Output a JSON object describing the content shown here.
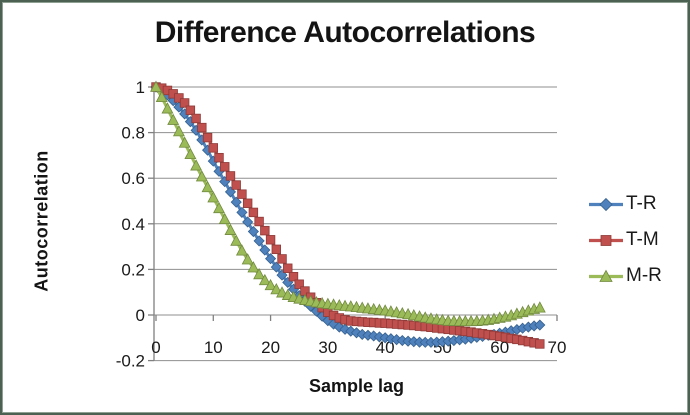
{
  "chart_data": {
    "type": "line",
    "title": "Difference Autocorrelations",
    "xlabel": "Sample lag",
    "ylabel": "Autocorrelation",
    "xlim": [
      0,
      70
    ],
    "ylim": [
      -0.2,
      1.0
    ],
    "x_ticks": [
      0,
      10,
      20,
      30,
      40,
      50,
      60,
      70
    ],
    "y_ticks": [
      1,
      0.8,
      0.6,
      0.4,
      0.2,
      0,
      -0.2
    ],
    "y_tick_labels": [
      "1",
      "0.8",
      "0.6",
      "0.4",
      "0.2",
      "0",
      "-0.2"
    ],
    "grid": "horizontal",
    "grid_color": "#8f8f8f",
    "axis_color": "#808080",
    "text_color": "#1a1a1a",
    "legend_position": "right",
    "x": [
      0,
      1,
      2,
      3,
      4,
      5,
      6,
      7,
      8,
      9,
      10,
      11,
      12,
      13,
      14,
      15,
      16,
      17,
      18,
      19,
      20,
      21,
      22,
      23,
      24,
      25,
      26,
      27,
      28,
      29,
      30,
      31,
      32,
      33,
      34,
      35,
      36,
      37,
      38,
      39,
      40,
      41,
      42,
      43,
      44,
      45,
      46,
      47,
      48,
      49,
      50,
      51,
      52,
      53,
      54,
      55,
      56,
      57,
      58,
      59,
      60,
      61,
      62,
      63,
      64,
      65,
      66,
      67
    ],
    "series": [
      {
        "name": "T-R",
        "color": "#4F81BD",
        "edge_color": "#35618e",
        "marker": "diamond",
        "values": [
          1.0,
          0.985,
          0.965,
          0.94,
          0.912,
          0.882,
          0.848,
          0.81,
          0.768,
          0.723,
          0.675,
          0.63,
          0.585,
          0.54,
          0.495,
          0.45,
          0.408,
          0.366,
          0.325,
          0.285,
          0.247,
          0.21,
          0.175,
          0.143,
          0.113,
          0.085,
          0.06,
          0.038,
          0.017,
          -0.005,
          -0.025,
          -0.04,
          -0.053,
          -0.063,
          -0.071,
          -0.078,
          -0.085,
          -0.089,
          -0.092,
          -0.096,
          -0.1,
          -0.104,
          -0.108,
          -0.112,
          -0.115,
          -0.117,
          -0.119,
          -0.12,
          -0.12,
          -0.119,
          -0.117,
          -0.115,
          -0.112,
          -0.109,
          -0.106,
          -0.102,
          -0.098,
          -0.094,
          -0.089,
          -0.085,
          -0.08,
          -0.075,
          -0.069,
          -0.064,
          -0.058,
          -0.053,
          -0.048,
          -0.044
        ]
      },
      {
        "name": "T-M",
        "color": "#C0504D",
        "edge_color": "#8e3a38",
        "marker": "square",
        "values": [
          1.0,
          0.995,
          0.985,
          0.97,
          0.952,
          0.93,
          0.898,
          0.862,
          0.822,
          0.778,
          0.733,
          0.69,
          0.65,
          0.61,
          0.57,
          0.53,
          0.49,
          0.45,
          0.41,
          0.37,
          0.33,
          0.288,
          0.246,
          0.205,
          0.168,
          0.135,
          0.105,
          0.078,
          0.054,
          0.032,
          0.012,
          -0.002,
          -0.013,
          -0.021,
          -0.026,
          -0.028,
          -0.03,
          -0.032,
          -0.033,
          -0.035,
          -0.036,
          -0.038,
          -0.04,
          -0.042,
          -0.044,
          -0.046,
          -0.049,
          -0.051,
          -0.054,
          -0.057,
          -0.06,
          -0.063,
          -0.066,
          -0.069,
          -0.072,
          -0.075,
          -0.079,
          -0.082,
          -0.086,
          -0.09,
          -0.094,
          -0.098,
          -0.103,
          -0.107,
          -0.112,
          -0.117,
          -0.122,
          -0.127
        ]
      },
      {
        "name": "M-R",
        "color": "#9BBB59",
        "edge_color": "#71893f",
        "marker": "triangle",
        "values": [
          1.0,
          0.955,
          0.905,
          0.855,
          0.805,
          0.755,
          0.705,
          0.655,
          0.607,
          0.56,
          0.515,
          0.468,
          0.42,
          0.372,
          0.325,
          0.282,
          0.243,
          0.208,
          0.178,
          0.152,
          0.13,
          0.112,
          0.098,
          0.087,
          0.078,
          0.071,
          0.065,
          0.06,
          0.055,
          0.051,
          0.048,
          0.045,
          0.042,
          0.039,
          0.037,
          0.034,
          0.031,
          0.028,
          0.025,
          0.022,
          0.019,
          0.015,
          0.011,
          0.007,
          0.003,
          -0.002,
          -0.007,
          -0.012,
          -0.016,
          -0.02,
          -0.023,
          -0.026,
          -0.027,
          -0.028,
          -0.028,
          -0.028,
          -0.027,
          -0.025,
          -0.022,
          -0.018,
          -0.013,
          -0.008,
          -0.002,
          0.005,
          0.012,
          0.019,
          0.026,
          0.032
        ]
      }
    ]
  }
}
